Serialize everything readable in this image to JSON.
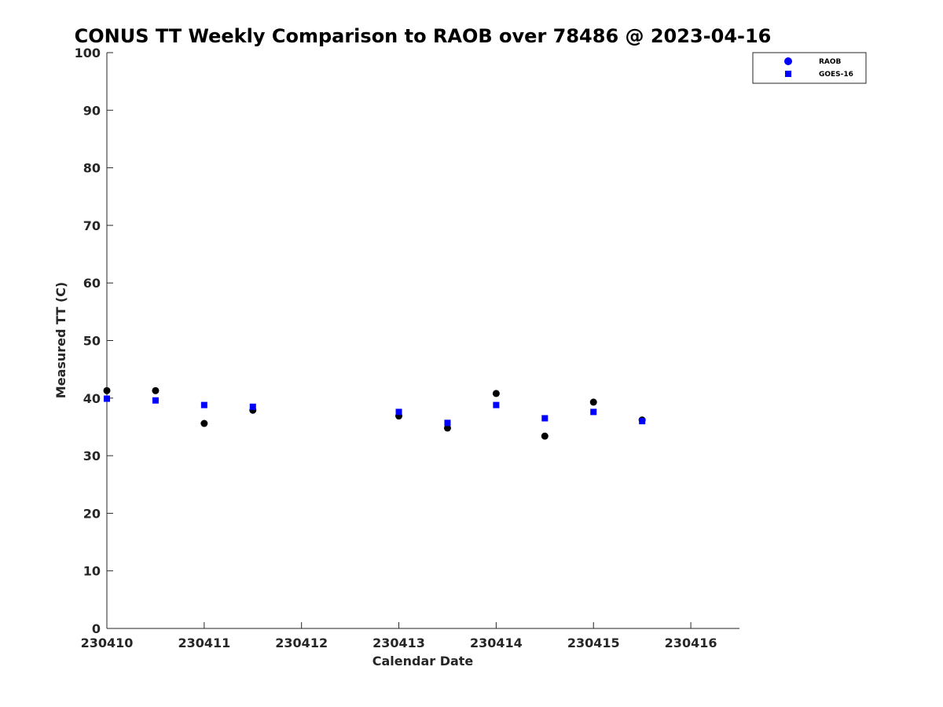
{
  "chart_data": {
    "type": "scatter",
    "title": "CONUS TT Weekly Comparison to RAOB over 78486 @ 2023-04-16",
    "xlabel": "Calendar Date",
    "ylabel": "Measured TT (C)",
    "xlim": [
      230410,
      230416.5
    ],
    "ylim": [
      0,
      100
    ],
    "x_ticks": [
      230410,
      230411,
      230412,
      230413,
      230414,
      230415,
      230416
    ],
    "x_tick_labels": [
      "230410",
      "230411",
      "230412",
      "230413",
      "230414",
      "230415",
      "230416"
    ],
    "y_ticks": [
      0,
      10,
      20,
      30,
      40,
      50,
      60,
      70,
      80,
      90,
      100
    ],
    "y_tick_labels": [
      "0",
      "10",
      "20",
      "30",
      "40",
      "50",
      "60",
      "70",
      "80",
      "90",
      "100"
    ],
    "grid": false,
    "legend_position": "top-right",
    "series": [
      {
        "name": "RAOB",
        "marker": "circle",
        "color": "#000000",
        "legend_color": "#0000ff",
        "points": [
          {
            "x": 230410.0,
            "y": 41.3
          },
          {
            "x": 230410.5,
            "y": 41.3
          },
          {
            "x": 230411.0,
            "y": 35.6
          },
          {
            "x": 230411.5,
            "y": 37.9
          },
          {
            "x": 230413.0,
            "y": 36.9
          },
          {
            "x": 230413.5,
            "y": 34.8
          },
          {
            "x": 230414.0,
            "y": 40.8
          },
          {
            "x": 230414.5,
            "y": 33.4
          },
          {
            "x": 230415.0,
            "y": 39.3
          },
          {
            "x": 230415.5,
            "y": 36.2
          }
        ]
      },
      {
        "name": "GOES-16",
        "marker": "square",
        "color": "#0000ff",
        "legend_color": "#0000ff",
        "points": [
          {
            "x": 230410.0,
            "y": 39.9
          },
          {
            "x": 230410.5,
            "y": 39.6
          },
          {
            "x": 230411.0,
            "y": 38.8
          },
          {
            "x": 230411.5,
            "y": 38.5
          },
          {
            "x": 230413.0,
            "y": 37.6
          },
          {
            "x": 230413.5,
            "y": 35.7
          },
          {
            "x": 230414.0,
            "y": 38.8
          },
          {
            "x": 230414.5,
            "y": 36.5
          },
          {
            "x": 230415.0,
            "y": 37.6
          },
          {
            "x": 230415.5,
            "y": 36.0
          }
        ]
      }
    ]
  }
}
